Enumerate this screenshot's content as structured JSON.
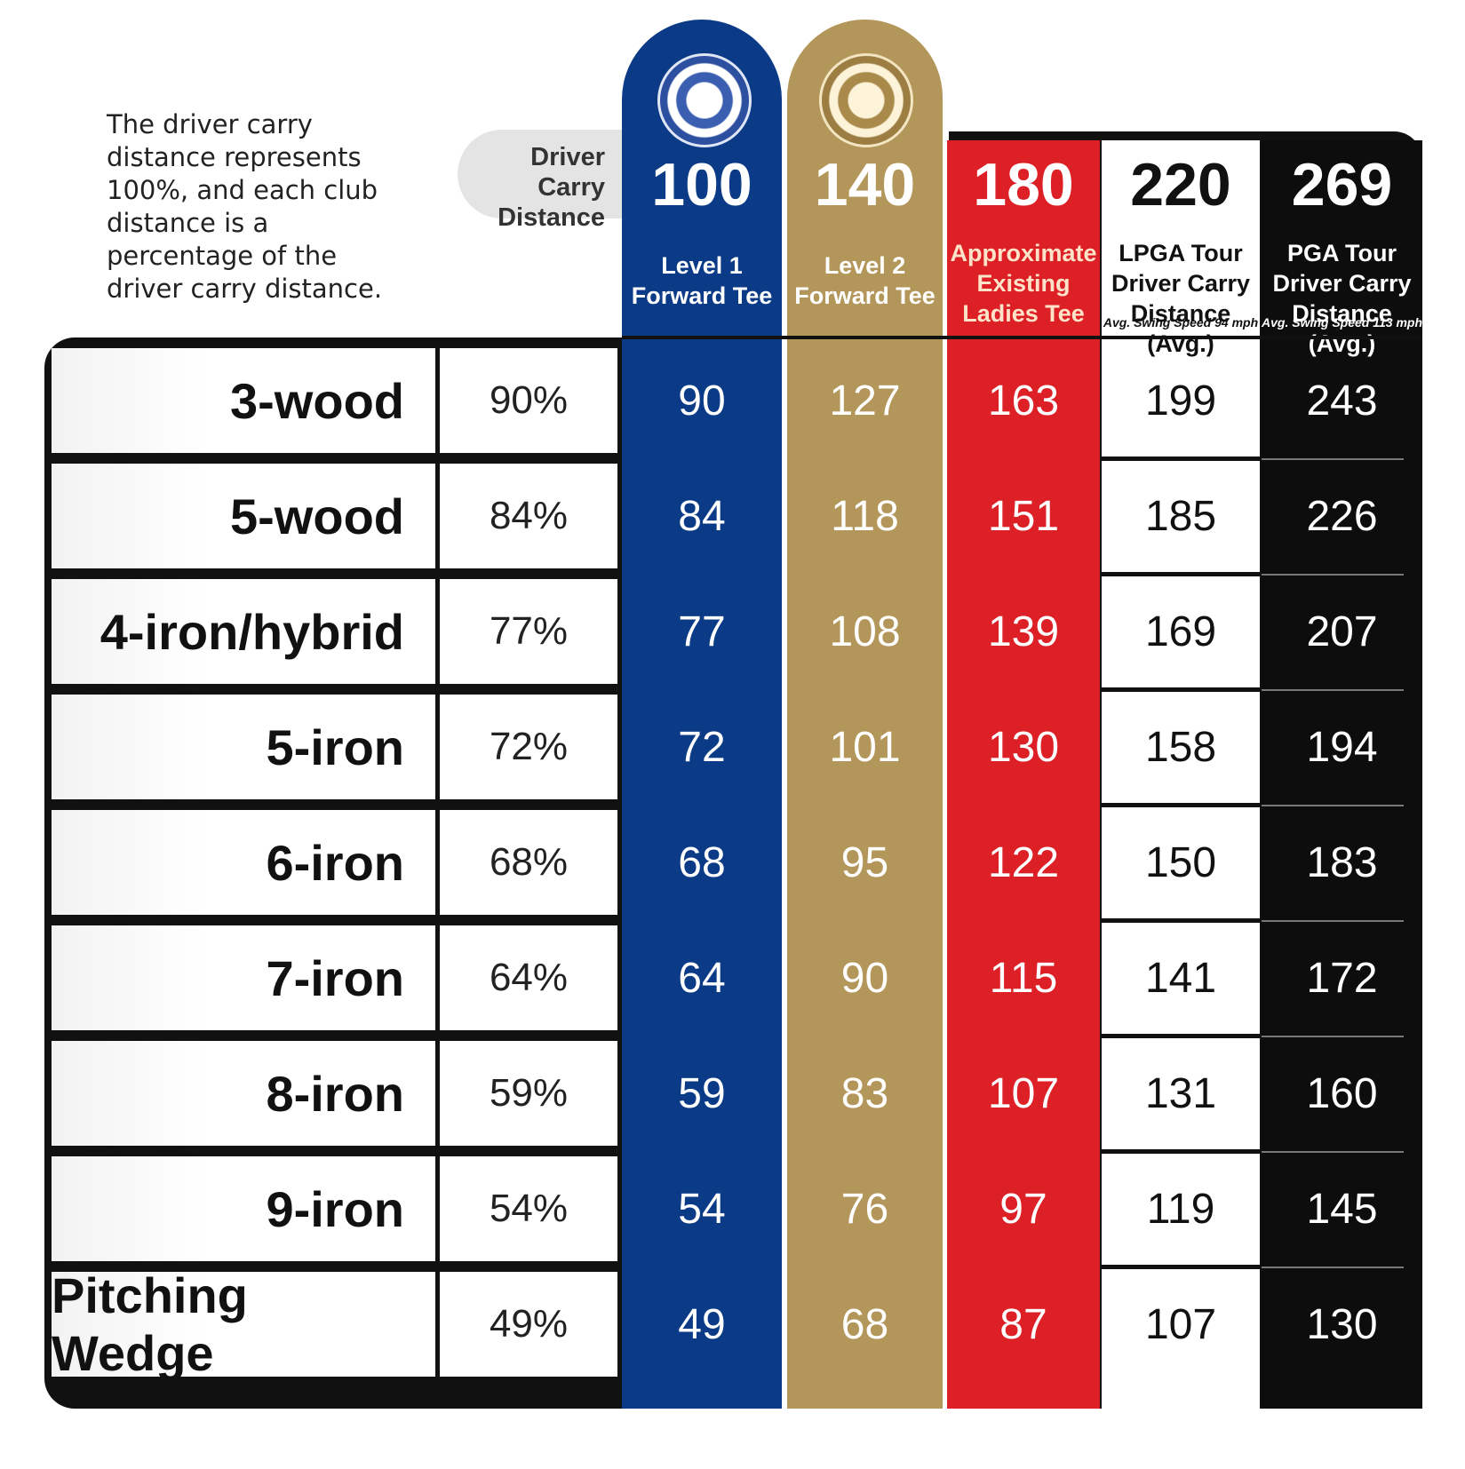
{
  "intro_text": "The driver carry distance represents 100%, and each club distance is a percentage of the driver carry distance.",
  "driver_carry_label_1": "Driver Carry",
  "driver_carry_label_2": "Distance",
  "colors": {
    "blue": "#0b3a87",
    "gold": "#b3965a",
    "red": "#dd1f26",
    "white": "#ffffff",
    "black": "#0d0d0d"
  },
  "chart_data": {
    "type": "table",
    "columns": [
      {
        "value": "100",
        "label_lines": [
          "Level 1",
          "Forward Tee"
        ],
        "small": ""
      },
      {
        "value": "140",
        "label_lines": [
          "Level 2",
          "Forward Tee"
        ],
        "small": ""
      },
      {
        "value": "180",
        "label_lines": [
          "Approximate",
          "Existing",
          "Ladies Tee"
        ],
        "small": ""
      },
      {
        "value": "220",
        "label_lines": [
          "LPGA Tour",
          "Driver Carry",
          "Distance (Avg.)"
        ],
        "small": "Avg. Swing Speed 94 mph"
      },
      {
        "value": "269",
        "label_lines": [
          "PGA Tour",
          "Driver Carry",
          "Distance (Avg.)"
        ],
        "small": "Avg. Swing Speed 113 mph"
      }
    ],
    "rows": [
      {
        "club": "3-wood",
        "pct": "90%",
        "values": [
          "90",
          "127",
          "163",
          "199",
          "243"
        ]
      },
      {
        "club": "5-wood",
        "pct": "84%",
        "values": [
          "84",
          "118",
          "151",
          "185",
          "226"
        ]
      },
      {
        "club": "4-iron/hybrid",
        "pct": "77%",
        "values": [
          "77",
          "108",
          "139",
          "169",
          "207"
        ]
      },
      {
        "club": "5-iron",
        "pct": "72%",
        "values": [
          "72",
          "101",
          "130",
          "158",
          "194"
        ]
      },
      {
        "club": "6-iron",
        "pct": "68%",
        "values": [
          "68",
          "95",
          "122",
          "150",
          "183"
        ]
      },
      {
        "club": "7-iron",
        "pct": "64%",
        "values": [
          "64",
          "90",
          "115",
          "141",
          "172"
        ]
      },
      {
        "club": "8-iron",
        "pct": "59%",
        "values": [
          "59",
          "83",
          "107",
          "131",
          "160"
        ]
      },
      {
        "club": "9-iron",
        "pct": "54%",
        "values": [
          "54",
          "76",
          "97",
          "119",
          "145"
        ]
      },
      {
        "club": "Pitching Wedge",
        "pct": "49%",
        "values": [
          "49",
          "68",
          "87",
          "107",
          "130"
        ]
      }
    ]
  }
}
